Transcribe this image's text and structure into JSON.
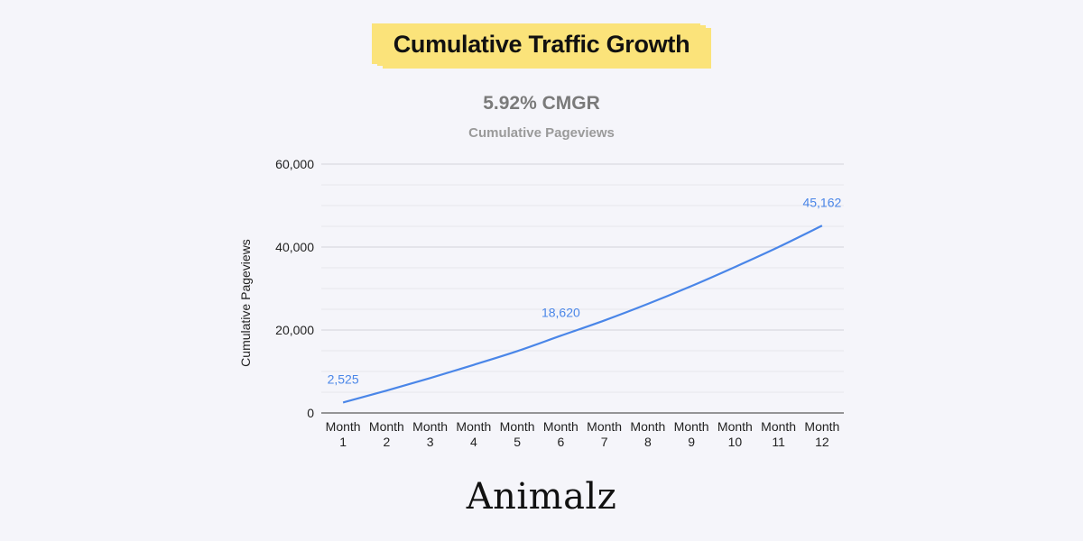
{
  "header": {
    "title": "Cumulative Traffic Growth",
    "highlight_color": "#fbe37a"
  },
  "subtitle": "5.92% CMGR",
  "brand": {
    "logo_text": "Animalz"
  },
  "chart_data": {
    "type": "line",
    "title": "Cumulative Pageviews",
    "xlabel": "",
    "ylabel": "Cumulative Pageviews",
    "ylim": [
      0,
      60000
    ],
    "yticks": [
      0,
      20000,
      40000,
      60000
    ],
    "ytick_labels": [
      "0",
      "20,000",
      "40,000",
      "60,000"
    ],
    "minor_gridlines": true,
    "legend": "none",
    "categories": [
      [
        "Month",
        "1"
      ],
      [
        "Month",
        "2"
      ],
      [
        "Month",
        "3"
      ],
      [
        "Month",
        "4"
      ],
      [
        "Month",
        "5"
      ],
      [
        "Month",
        "6"
      ],
      [
        "Month",
        "7"
      ],
      [
        "Month",
        "8"
      ],
      [
        "Month",
        "9"
      ],
      [
        "Month",
        "10"
      ],
      [
        "Month",
        "11"
      ],
      [
        "Month",
        "12"
      ]
    ],
    "series": [
      {
        "name": "Cumulative Pageviews",
        "color": "#4a86e8",
        "values": [
          2525,
          5400,
          8400,
          11600,
          14900,
          18620,
          22300,
          26300,
          30600,
          35200,
          40000,
          45162
        ]
      }
    ],
    "data_labels": [
      {
        "index": 0,
        "text": "2,525"
      },
      {
        "index": 5,
        "text": "18,620"
      },
      {
        "index": 11,
        "text": "45,162"
      }
    ]
  }
}
